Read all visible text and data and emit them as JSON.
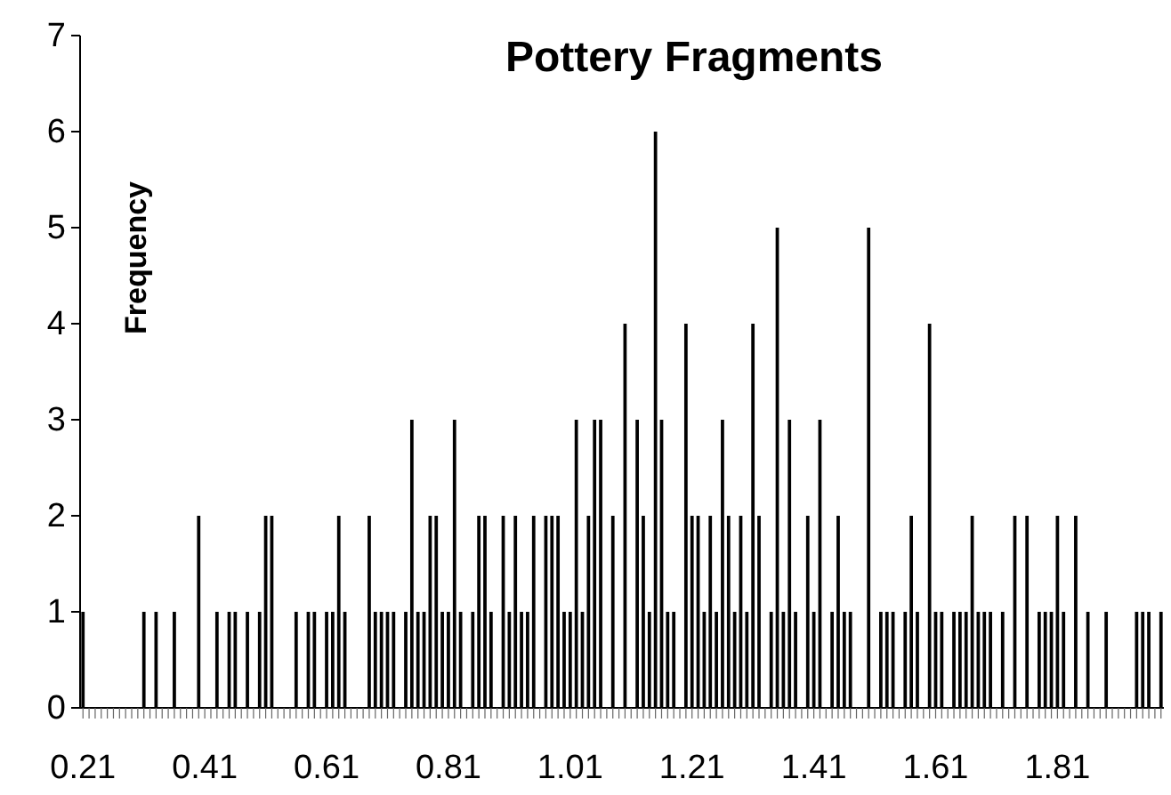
{
  "chart_data": {
    "type": "bar",
    "title": "Pottery Fragments",
    "ylabel": "Frequency",
    "categories": [
      "0.21",
      null,
      null,
      null,
      null,
      null,
      null,
      null,
      null,
      null,
      null,
      null,
      null,
      null,
      null,
      null,
      null,
      null,
      null,
      null,
      "0.41",
      null,
      null,
      null,
      null,
      null,
      null,
      null,
      null,
      null,
      null,
      null,
      null,
      null,
      null,
      null,
      null,
      null,
      null,
      null,
      "0.61",
      null,
      null,
      null,
      null,
      null,
      null,
      null,
      null,
      null,
      null,
      null,
      null,
      null,
      null,
      null,
      null,
      null,
      null,
      null,
      "0.81",
      null,
      null,
      null,
      null,
      null,
      null,
      null,
      null,
      null,
      null,
      null,
      null,
      null,
      null,
      null,
      null,
      null,
      null,
      null,
      "1.01",
      null,
      null,
      null,
      null,
      null,
      null,
      null,
      null,
      null,
      null,
      null,
      null,
      null,
      null,
      null,
      null,
      null,
      null,
      null,
      "1.21",
      null,
      null,
      null,
      null,
      null,
      null,
      null,
      null,
      null,
      null,
      null,
      null,
      null,
      null,
      null,
      null,
      null,
      null,
      null,
      "1.41",
      null,
      null,
      null,
      null,
      null,
      null,
      null,
      null,
      null,
      null,
      null,
      null,
      null,
      null,
      null,
      null,
      null,
      null,
      null,
      "1.61",
      null,
      null,
      null,
      null,
      null,
      null,
      null,
      null,
      null,
      null,
      null,
      null,
      null,
      null,
      null,
      null,
      null,
      null,
      null,
      "1.81",
      null,
      null,
      null,
      null,
      null,
      null,
      null,
      null,
      null,
      null,
      null,
      null,
      null,
      null,
      null,
      null,
      null
    ],
    "values": [
      1,
      0,
      0,
      0,
      0,
      0,
      0,
      0,
      0,
      0,
      1,
      0,
      1,
      0,
      0,
      1,
      0,
      0,
      0,
      2,
      0,
      0,
      1,
      0,
      1,
      1,
      0,
      1,
      0,
      1,
      2,
      2,
      0,
      0,
      0,
      1,
      0,
      1,
      1,
      0,
      1,
      1,
      2,
      1,
      0,
      0,
      0,
      2,
      1,
      1,
      1,
      1,
      0,
      1,
      3,
      1,
      1,
      2,
      2,
      1,
      1,
      3,
      1,
      0,
      1,
      2,
      2,
      1,
      0,
      2,
      1,
      2,
      1,
      1,
      2,
      0,
      2,
      2,
      2,
      1,
      1,
      3,
      1,
      2,
      3,
      3,
      0,
      2,
      0,
      4,
      0,
      3,
      2,
      1,
      6,
      3,
      1,
      1,
      0,
      4,
      2,
      2,
      1,
      2,
      1,
      3,
      2,
      1,
      2,
      1,
      4,
      2,
      0,
      1,
      5,
      1,
      3,
      1,
      0,
      2,
      1,
      3,
      0,
      1,
      2,
      1,
      1,
      0,
      0,
      5,
      0,
      1,
      1,
      1,
      0,
      1,
      2,
      1,
      0,
      4,
      1,
      1,
      0,
      1,
      1,
      1,
      2,
      1,
      1,
      1,
      0,
      1,
      0,
      2,
      0,
      2,
      0,
      1,
      1,
      1,
      2,
      1,
      0,
      2,
      0,
      1,
      0,
      0,
      1,
      0,
      0,
      0,
      0,
      1,
      1,
      1,
      0,
      1
    ],
    "color": "#000000",
    "ylim": [
      0,
      7
    ],
    "yticks": [
      0,
      1,
      2,
      3,
      4,
      5,
      6,
      7
    ],
    "grid": false
  }
}
